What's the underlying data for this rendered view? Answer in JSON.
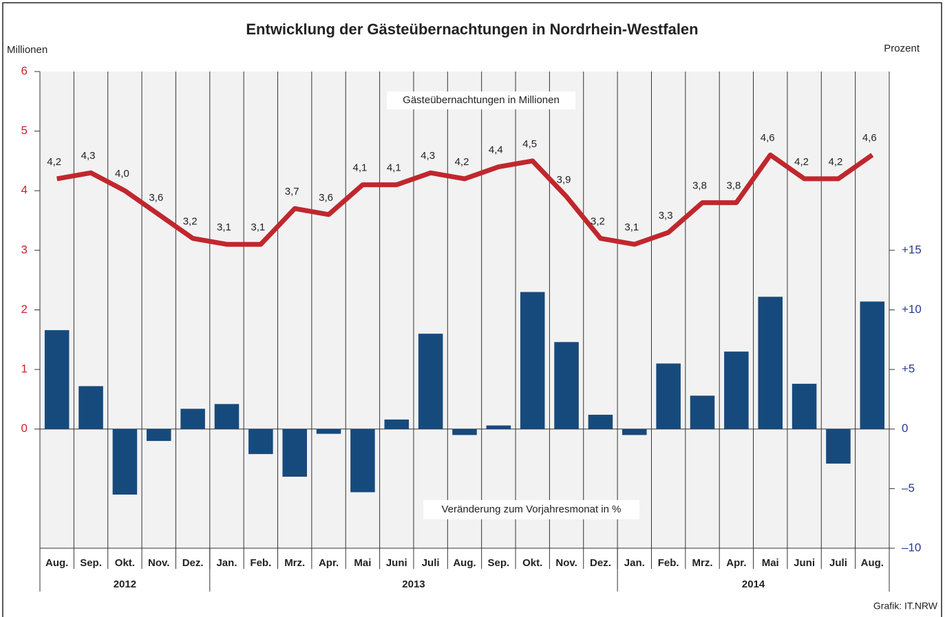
{
  "chart_data": {
    "type": "bar-line",
    "title": "Entwicklung der Gästeübernachtungen in Nordrhein-Westfalen",
    "y_label": "Millionen",
    "y2_label": "Prozent",
    "line_label": "Gästeübernachtungen in Millionen",
    "bar_label": "Veränderung zum Vorjahresmonat in %",
    "source": "Grafik: IT.NRW",
    "categories": [
      "Aug.",
      "Sep.",
      "Okt.",
      "Nov.",
      "Dez.",
      "Jan.",
      "Feb.",
      "Mrz.",
      "Apr.",
      "Mai",
      "Juni",
      "Juli",
      "Aug.",
      "Sep.",
      "Okt.",
      "Nov.",
      "Dez.",
      "Jan.",
      "Feb.",
      "Mrz.",
      "Apr.",
      "Mai",
      "Juni",
      "Juli",
      "Aug."
    ],
    "year_groups": [
      {
        "label": "2012",
        "count": 5
      },
      {
        "label": "2013",
        "count": 12
      },
      {
        "label": "2014",
        "count": 8
      }
    ],
    "series": [
      {
        "name": "Gästeübernachtungen",
        "type": "line",
        "color": "#c0272d",
        "values": [
          4.2,
          4.3,
          4.0,
          3.6,
          3.2,
          3.1,
          3.1,
          3.7,
          3.6,
          4.1,
          4.1,
          4.3,
          4.2,
          4.4,
          4.5,
          3.9,
          3.2,
          3.1,
          3.3,
          3.8,
          3.8,
          4.6,
          4.2,
          4.2,
          4.6
        ],
        "value_labels": [
          "4,2",
          "4,3",
          "4,0",
          "3,6",
          "3,2",
          "3,1",
          "3,1",
          "3,7",
          "3,6",
          "4,1",
          "4,1",
          "4,3",
          "4,2",
          "4,4",
          "4,5",
          "3,9",
          "3,2",
          "3,1",
          "3,3",
          "3,8",
          "3,8",
          "4,6",
          "4,2",
          "4,2",
          "4,6"
        ]
      },
      {
        "name": "Veränderung",
        "type": "bar",
        "axis": "y2",
        "color": "#174a7c",
        "values": [
          8.3,
          3.6,
          -5.5,
          -1.0,
          1.7,
          2.1,
          -2.1,
          -4.0,
          -0.4,
          -5.3,
          0.8,
          8.0,
          -0.5,
          0.3,
          11.5,
          7.3,
          1.2,
          -0.5,
          5.5,
          2.8,
          6.5,
          11.1,
          3.8,
          -2.9,
          10.7
        ]
      }
    ],
    "ylim": [
      -2,
      6
    ],
    "yticks": [
      0,
      1,
      2,
      3,
      4,
      5,
      6
    ],
    "y2lim": [
      -10,
      30
    ],
    "y2ticks": [
      {
        "value": -10,
        "label": "–10"
      },
      {
        "value": -5,
        "label": "–5"
      },
      0,
      {
        "value": 5,
        "label": "+5"
      },
      {
        "value": 10,
        "label": "+10"
      },
      {
        "value": 15,
        "label": "+15"
      }
    ],
    "y_color": "#d0202a",
    "y2_color": "#2b3990",
    "background": "#f2f2f2"
  }
}
